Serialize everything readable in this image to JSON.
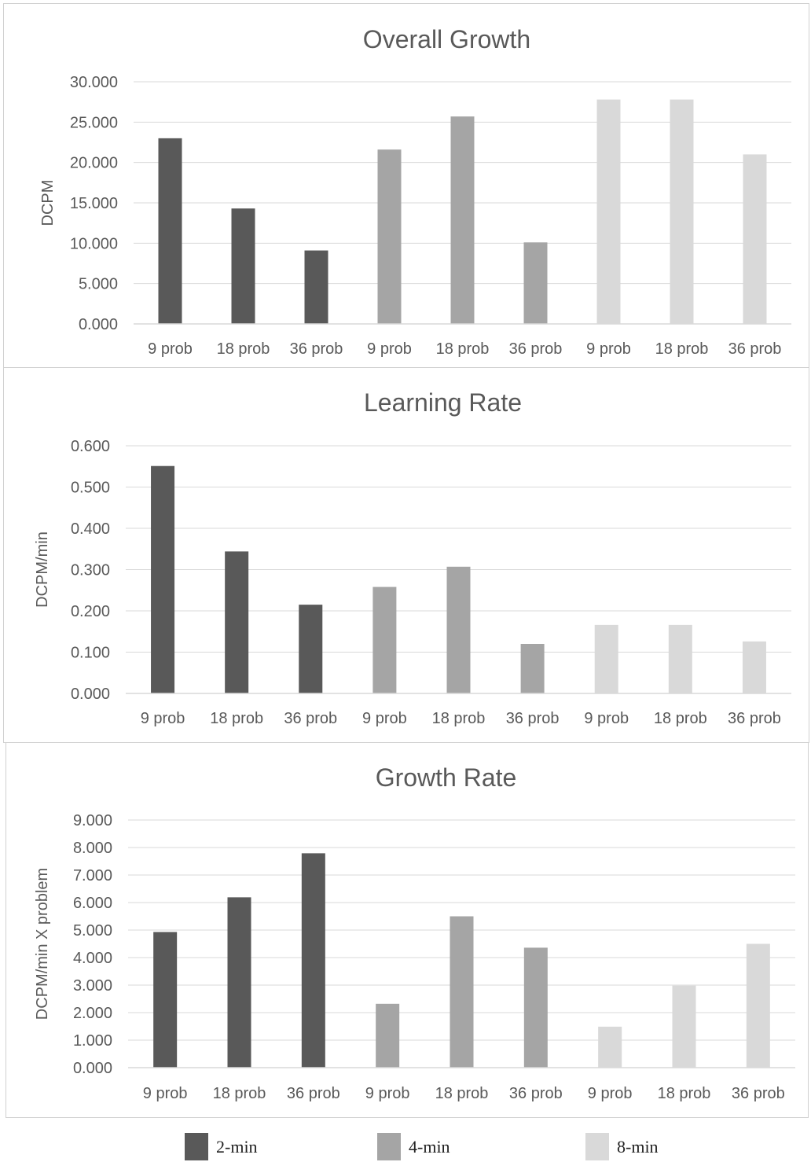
{
  "colors": {
    "2-min": "#595959",
    "4-min": "#a5a5a5",
    "8-min": "#d9d9d9",
    "grid": "#d9d9d9",
    "text": "#595959"
  },
  "legend": {
    "items": [
      {
        "label": "2-min",
        "color": "#595959"
      },
      {
        "label": "4-min",
        "color": "#a5a5a5"
      },
      {
        "label": "8-min",
        "color": "#d9d9d9"
      }
    ]
  },
  "chart_data": [
    {
      "type": "bar",
      "title": "Overall Growth",
      "ylabel": "DCPM",
      "xlabel": "",
      "ylim": [
        0,
        30
      ],
      "yticks": [
        "0.000",
        "5.000",
        "10.000",
        "15.000",
        "20.000",
        "25.000",
        "30.000"
      ],
      "grid": true,
      "categories": [
        "9 prob",
        "18 prob",
        "36 prob",
        "9 prob",
        "18 prob",
        "36 prob",
        "9 prob",
        "18 prob",
        "36 prob"
      ],
      "values": [
        23.0,
        14.3,
        9.1,
        21.6,
        25.7,
        10.1,
        27.8,
        27.8,
        21.0
      ],
      "groups": [
        "2-min",
        "2-min",
        "2-min",
        "4-min",
        "4-min",
        "4-min",
        "8-min",
        "8-min",
        "8-min"
      ]
    },
    {
      "type": "bar",
      "title": "Learning Rate",
      "ylabel": "DCPM/min",
      "xlabel": "",
      "ylim": [
        0,
        0.6
      ],
      "yticks": [
        "0.000",
        "0.100",
        "0.200",
        "0.300",
        "0.400",
        "0.500",
        "0.600"
      ],
      "grid": true,
      "categories": [
        "9 prob",
        "18 prob",
        "36 prob",
        "9 prob",
        "18 prob",
        "36 prob",
        "9 prob",
        "18 prob",
        "36 prob"
      ],
      "values": [
        0.551,
        0.344,
        0.215,
        0.258,
        0.307,
        0.12,
        0.166,
        0.166,
        0.126
      ],
      "groups": [
        "2-min",
        "2-min",
        "2-min",
        "4-min",
        "4-min",
        "4-min",
        "8-min",
        "8-min",
        "8-min"
      ]
    },
    {
      "type": "bar",
      "title": "Growth Rate",
      "ylabel": "DCPM/min X problem",
      "xlabel": "",
      "ylim": [
        0,
        9
      ],
      "yticks": [
        "0.000",
        "1.000",
        "2.000",
        "3.000",
        "4.000",
        "5.000",
        "6.000",
        "7.000",
        "8.000",
        "9.000"
      ],
      "grid": true,
      "categories": [
        "9 prob",
        "18 prob",
        "36 prob",
        "9 prob",
        "18 prob",
        "36 prob",
        "9 prob",
        "18 prob",
        "36 prob"
      ],
      "values": [
        4.93,
        6.19,
        7.79,
        2.32,
        5.5,
        4.36,
        1.49,
        2.98,
        4.5
      ],
      "groups": [
        "2-min",
        "2-min",
        "2-min",
        "4-min",
        "4-min",
        "4-min",
        "8-min",
        "8-min",
        "8-min"
      ]
    }
  ]
}
